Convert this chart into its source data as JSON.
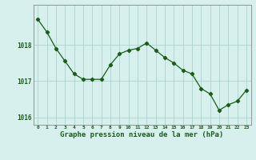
{
  "x": [
    0,
    1,
    2,
    3,
    4,
    5,
    6,
    7,
    8,
    9,
    10,
    11,
    12,
    13,
    14,
    15,
    16,
    17,
    18,
    19,
    20,
    21,
    22,
    23
  ],
  "y": [
    1018.7,
    1018.35,
    1017.9,
    1017.55,
    1017.2,
    1017.05,
    1017.05,
    1017.05,
    1017.45,
    1017.75,
    1017.85,
    1017.9,
    1018.05,
    1017.85,
    1017.65,
    1017.5,
    1017.3,
    1017.2,
    1016.8,
    1016.65,
    1016.2,
    1016.35,
    1016.45,
    1016.75
  ],
  "line_color": "#1a5c1a",
  "marker": "D",
  "marker_size": 2.2,
  "background_color": "#d8f0ed",
  "grid_color": "#aad4cc",
  "tick_label_color": "#1a5c1a",
  "xlabel": "Graphe pression niveau de la mer (hPa)",
  "xlabel_color": "#1a5c1a",
  "ylim": [
    1015.8,
    1019.1
  ],
  "yticks": [
    1016,
    1017,
    1018
  ],
  "xlim": [
    -0.5,
    23.5
  ],
  "xticks": [
    0,
    1,
    2,
    3,
    4,
    5,
    6,
    7,
    8,
    9,
    10,
    11,
    12,
    13,
    14,
    15,
    16,
    17,
    18,
    19,
    20,
    21,
    22,
    23
  ],
  "spine_color": "#888888"
}
